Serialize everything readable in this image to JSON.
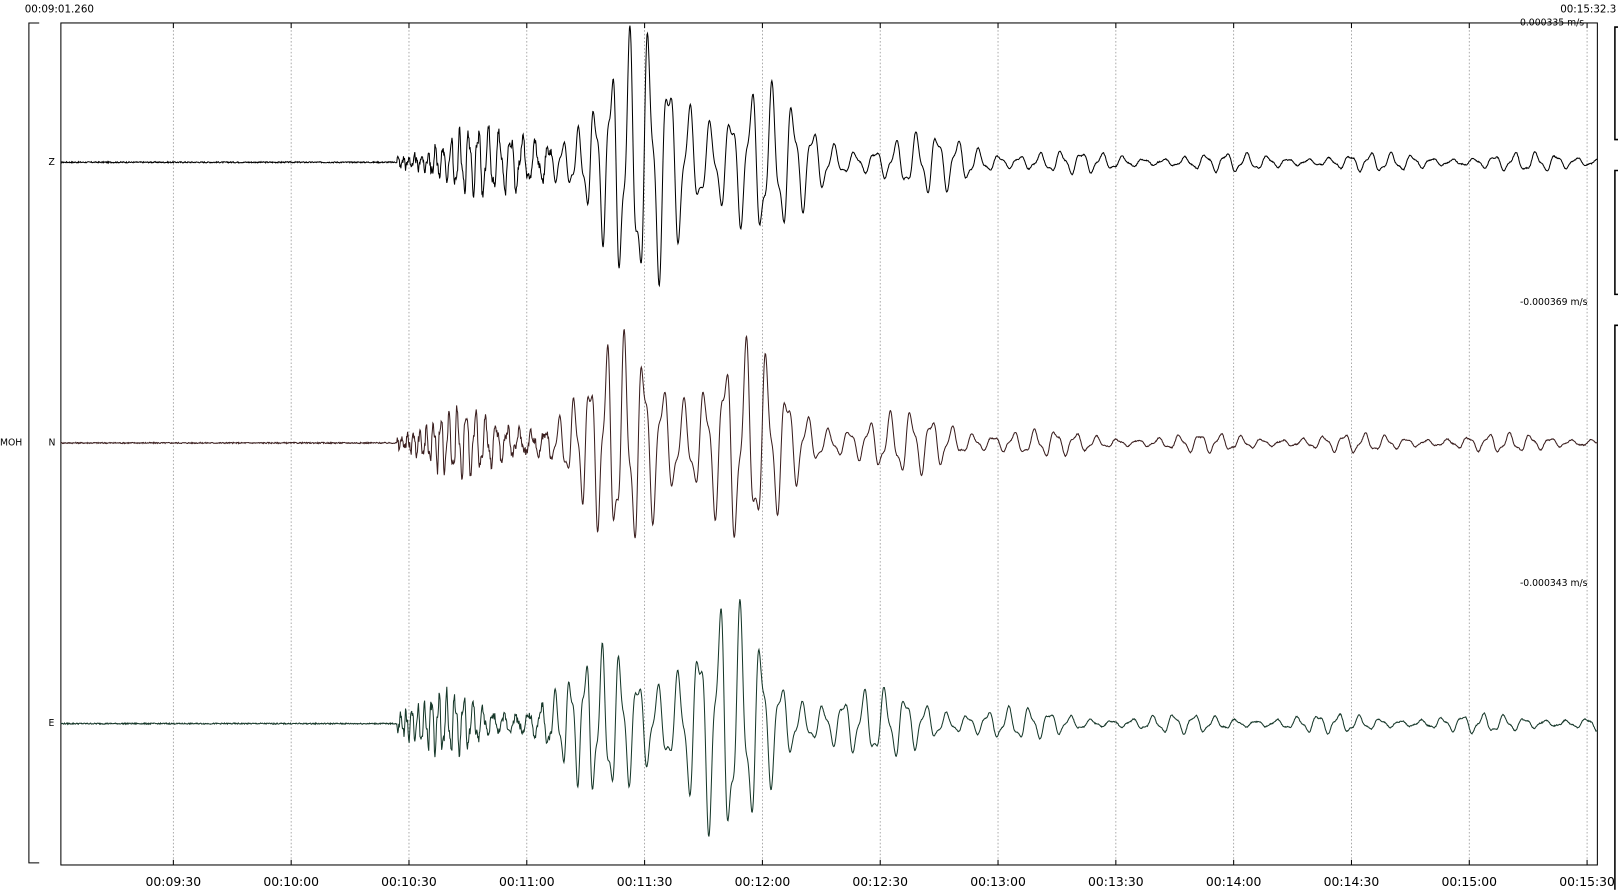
{
  "header": {
    "start_time": "00:09:01.260",
    "end_time": "00:15:32.3"
  },
  "station": "MOH",
  "channels": [
    {
      "label": "Z",
      "amplitude": "0.000335 m/s"
    },
    {
      "label": "N",
      "amplitude": "-0.000369 m/s"
    },
    {
      "label": "E",
      "amplitude": "-0.000343 m/s"
    }
  ],
  "time_axis": {
    "ticks": [
      "00:09:30",
      "00:10:00",
      "00:10:30",
      "00:11:00",
      "00:11:30",
      "00:12:00",
      "00:12:30",
      "00:13:00",
      "00:13:30",
      "00:14:00",
      "00:14:30",
      "00:15:00",
      "00:15:30"
    ]
  }
}
